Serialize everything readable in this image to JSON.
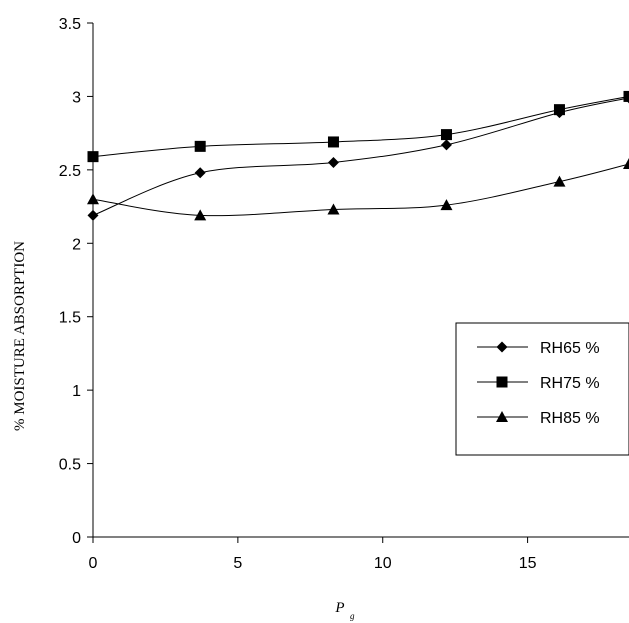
{
  "chart_data": {
    "type": "line",
    "title": "",
    "xlabel": "P",
    "xlabel_subscript": "g",
    "ylabel": "% MOISTURE ABSORPTION",
    "xlim": [
      0,
      18.5
    ],
    "ylim": [
      0,
      3.5
    ],
    "xticks": [
      "0",
      "5",
      "10",
      "15"
    ],
    "yticks": [
      "0",
      "0.5",
      "1",
      "1.5",
      "2",
      "2.5",
      "3",
      "3.5"
    ],
    "legend_position": "right",
    "grid": false,
    "series": [
      {
        "name": "RH65 %",
        "marker": "diamond",
        "x": [
          0,
          3.7,
          8.3,
          12.2,
          16.1,
          18.5
        ],
        "y": [
          2.19,
          2.48,
          2.55,
          2.67,
          2.89,
          2.99
        ]
      },
      {
        "name": "RH75 %",
        "marker": "square",
        "x": [
          0,
          3.7,
          8.3,
          12.2,
          16.1,
          18.5
        ],
        "y": [
          2.59,
          2.66,
          2.69,
          2.74,
          2.91,
          3.0
        ]
      },
      {
        "name": "RH85 %",
        "marker": "triangle",
        "x": [
          0,
          3.7,
          8.3,
          12.2,
          16.1,
          18.5
        ],
        "y": [
          2.3,
          2.19,
          2.23,
          2.26,
          2.42,
          2.54
        ]
      }
    ]
  }
}
